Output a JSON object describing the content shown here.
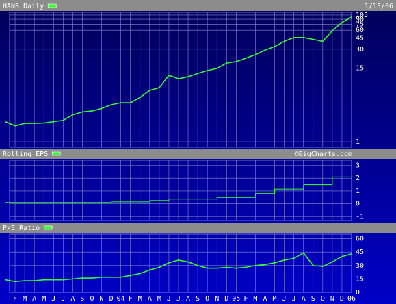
{
  "chart_data": [
    {
      "type": "line",
      "series": [
        {
          "name": "HANS Daily",
          "color": "#33ff33",
          "values": [
            2.1,
            1.8,
            1.97,
            1.97,
            2.0,
            2.1,
            2.2,
            2.7,
            3.0,
            3.1,
            3.4,
            3.9,
            4.2,
            4.2,
            5.1,
            6.6,
            7.3,
            11.5,
            10.1,
            10.9,
            12.3,
            13.7,
            14.8,
            18,
            19,
            21.5,
            24.5,
            29,
            33,
            40,
            46,
            46,
            43,
            40,
            59,
            80,
            98
          ]
        }
      ],
      "date": "1/13/06",
      "log_scale": true,
      "ylim": [
        0.82,
        116
      ],
      "yticks": [
        1,
        15,
        30,
        45,
        60,
        75,
        90,
        105
      ],
      "grid": true
    },
    {
      "type": "step",
      "series": [
        {
          "name": "Rolling EPS",
          "color": "#33ff33",
          "values": [
            0.1,
            0.1,
            0.1,
            0.1,
            0.1,
            0.1,
            0.1,
            0.1,
            0.1,
            0.1,
            0.1,
            0.15,
            0.15,
            0.15,
            0.15,
            0.26,
            0.26,
            0.37,
            0.37,
            0.37,
            0.37,
            0.37,
            0.5,
            0.5,
            0.5,
            0.5,
            0.8,
            0.8,
            1.15,
            1.15,
            1.15,
            1.5,
            1.5,
            1.5,
            2.1,
            2.1,
            2.1
          ]
        }
      ],
      "annotation": "©BigCharts.com",
      "ylim": [
        -1.3,
        3.4
      ],
      "yticks": [
        -1,
        0,
        1,
        2,
        3
      ],
      "grid": true
    },
    {
      "type": "line",
      "series": [
        {
          "name": "P/E Ratio",
          "color": "#33ff33",
          "values": [
            14,
            12,
            13,
            13,
            14,
            14,
            14,
            15,
            16,
            16,
            17,
            17,
            17,
            19,
            21,
            25,
            28,
            33,
            36,
            34,
            30,
            27,
            27,
            28,
            27,
            28,
            30,
            31,
            33,
            36,
            38,
            44,
            30,
            29,
            34,
            40,
            43
          ]
        }
      ],
      "categories": [
        null,
        "F",
        "M",
        "A",
        "M",
        "J",
        "J",
        "A",
        "S",
        "O",
        "N",
        "D",
        "04",
        "F",
        "M",
        "A",
        "M",
        "J",
        "J",
        "A",
        "S",
        "O",
        "N",
        "D",
        "05",
        "F",
        "M",
        "A",
        "M",
        "J",
        "J",
        "A",
        "S",
        "O",
        "N",
        "D",
        "06"
      ],
      "ylim": [
        0,
        65
      ],
      "yticks": [
        0,
        15,
        30,
        45,
        60
      ],
      "grid": true
    }
  ]
}
